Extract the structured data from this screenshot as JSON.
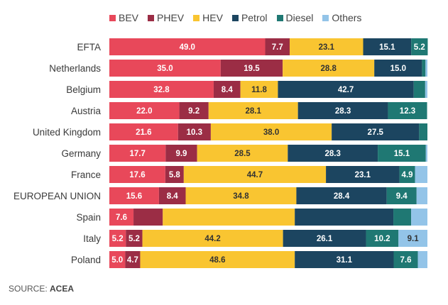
{
  "chart_data": {
    "type": "bar",
    "orientation": "horizontal",
    "stacked": true,
    "title": "",
    "xlabel": "",
    "ylabel": "",
    "xlim": [
      0,
      100
    ],
    "unit": "%",
    "grid": false,
    "legend_position": "top",
    "categories": [
      "EFTA",
      "Netherlands",
      "Belgium",
      "Austria",
      "United Kingdom",
      "Germany",
      "France",
      "EUROPEAN UNION",
      "Spain",
      "Italy",
      "Poland"
    ],
    "series": [
      {
        "name": "BEV",
        "color": "#E8485A",
        "label_color": "#ffffff",
        "values": [
          49.0,
          35.0,
          32.8,
          22.0,
          21.6,
          17.7,
          17.6,
          15.6,
          7.6,
          5.2,
          5.0
        ],
        "labels": [
          "49.0",
          "35.0",
          "32.8",
          "22.0",
          "21.6",
          "17.7",
          "17.6",
          "15.6",
          "7.6",
          "5.2",
          "5.0"
        ]
      },
      {
        "name": "PHEV",
        "color": "#9B2D45",
        "label_color": "#ffffff",
        "values": [
          7.7,
          19.5,
          8.4,
          9.2,
          10.3,
          9.9,
          5.8,
          8.4,
          9.2,
          5.2,
          4.7
        ],
        "labels": [
          "7.7",
          "19.5",
          "8.4",
          "9.2",
          "10.3",
          "9.9",
          "5.8",
          "8.4",
          "",
          "5.2",
          "4.7"
        ]
      },
      {
        "name": "HEV",
        "color": "#F9C531",
        "label_color": "#333333",
        "values": [
          23.1,
          28.8,
          11.8,
          28.1,
          38.0,
          28.5,
          44.7,
          34.8,
          41.5,
          44.2,
          48.6
        ],
        "labels": [
          "23.1",
          "28.8",
          "11.8",
          "28.1",
          "38.0",
          "28.5",
          "44.7",
          "34.8",
          "",
          "44.2",
          "48.6"
        ]
      },
      {
        "name": "Petrol",
        "color": "#1C4560",
        "label_color": "#ffffff",
        "values": [
          15.1,
          15.0,
          42.7,
          28.3,
          27.5,
          28.3,
          23.1,
          28.4,
          31.0,
          26.1,
          31.1
        ],
        "labels": [
          "15.1",
          "15.0",
          "42.7",
          "28.3",
          "27.5",
          "28.3",
          "23.1",
          "28.4",
          "",
          "26.1",
          "31.1"
        ]
      },
      {
        "name": "Diesel",
        "color": "#1F7873",
        "label_color": "#ffffff",
        "values": [
          5.2,
          1.1,
          3.6,
          12.3,
          2.6,
          15.1,
          4.9,
          9.4,
          5.6,
          10.2,
          7.6
        ],
        "labels": [
          "5.2",
          "",
          "",
          "12.3",
          "",
          "15.1",
          "4.9",
          "9.4",
          "",
          "10.2",
          "7.6"
        ]
      },
      {
        "name": "Others",
        "color": "#93C4E8",
        "label_color": "#333333",
        "values": [
          0.0,
          0.6,
          0.7,
          0.0,
          0.0,
          0.5,
          3.9,
          3.4,
          5.1,
          9.1,
          3.0
        ],
        "labels": [
          "",
          "",
          "",
          "",
          "",
          "",
          "",
          "",
          "",
          "9.1",
          ""
        ]
      }
    ]
  },
  "source": {
    "prefix": "SOURCE: ",
    "name": "ACEA"
  }
}
